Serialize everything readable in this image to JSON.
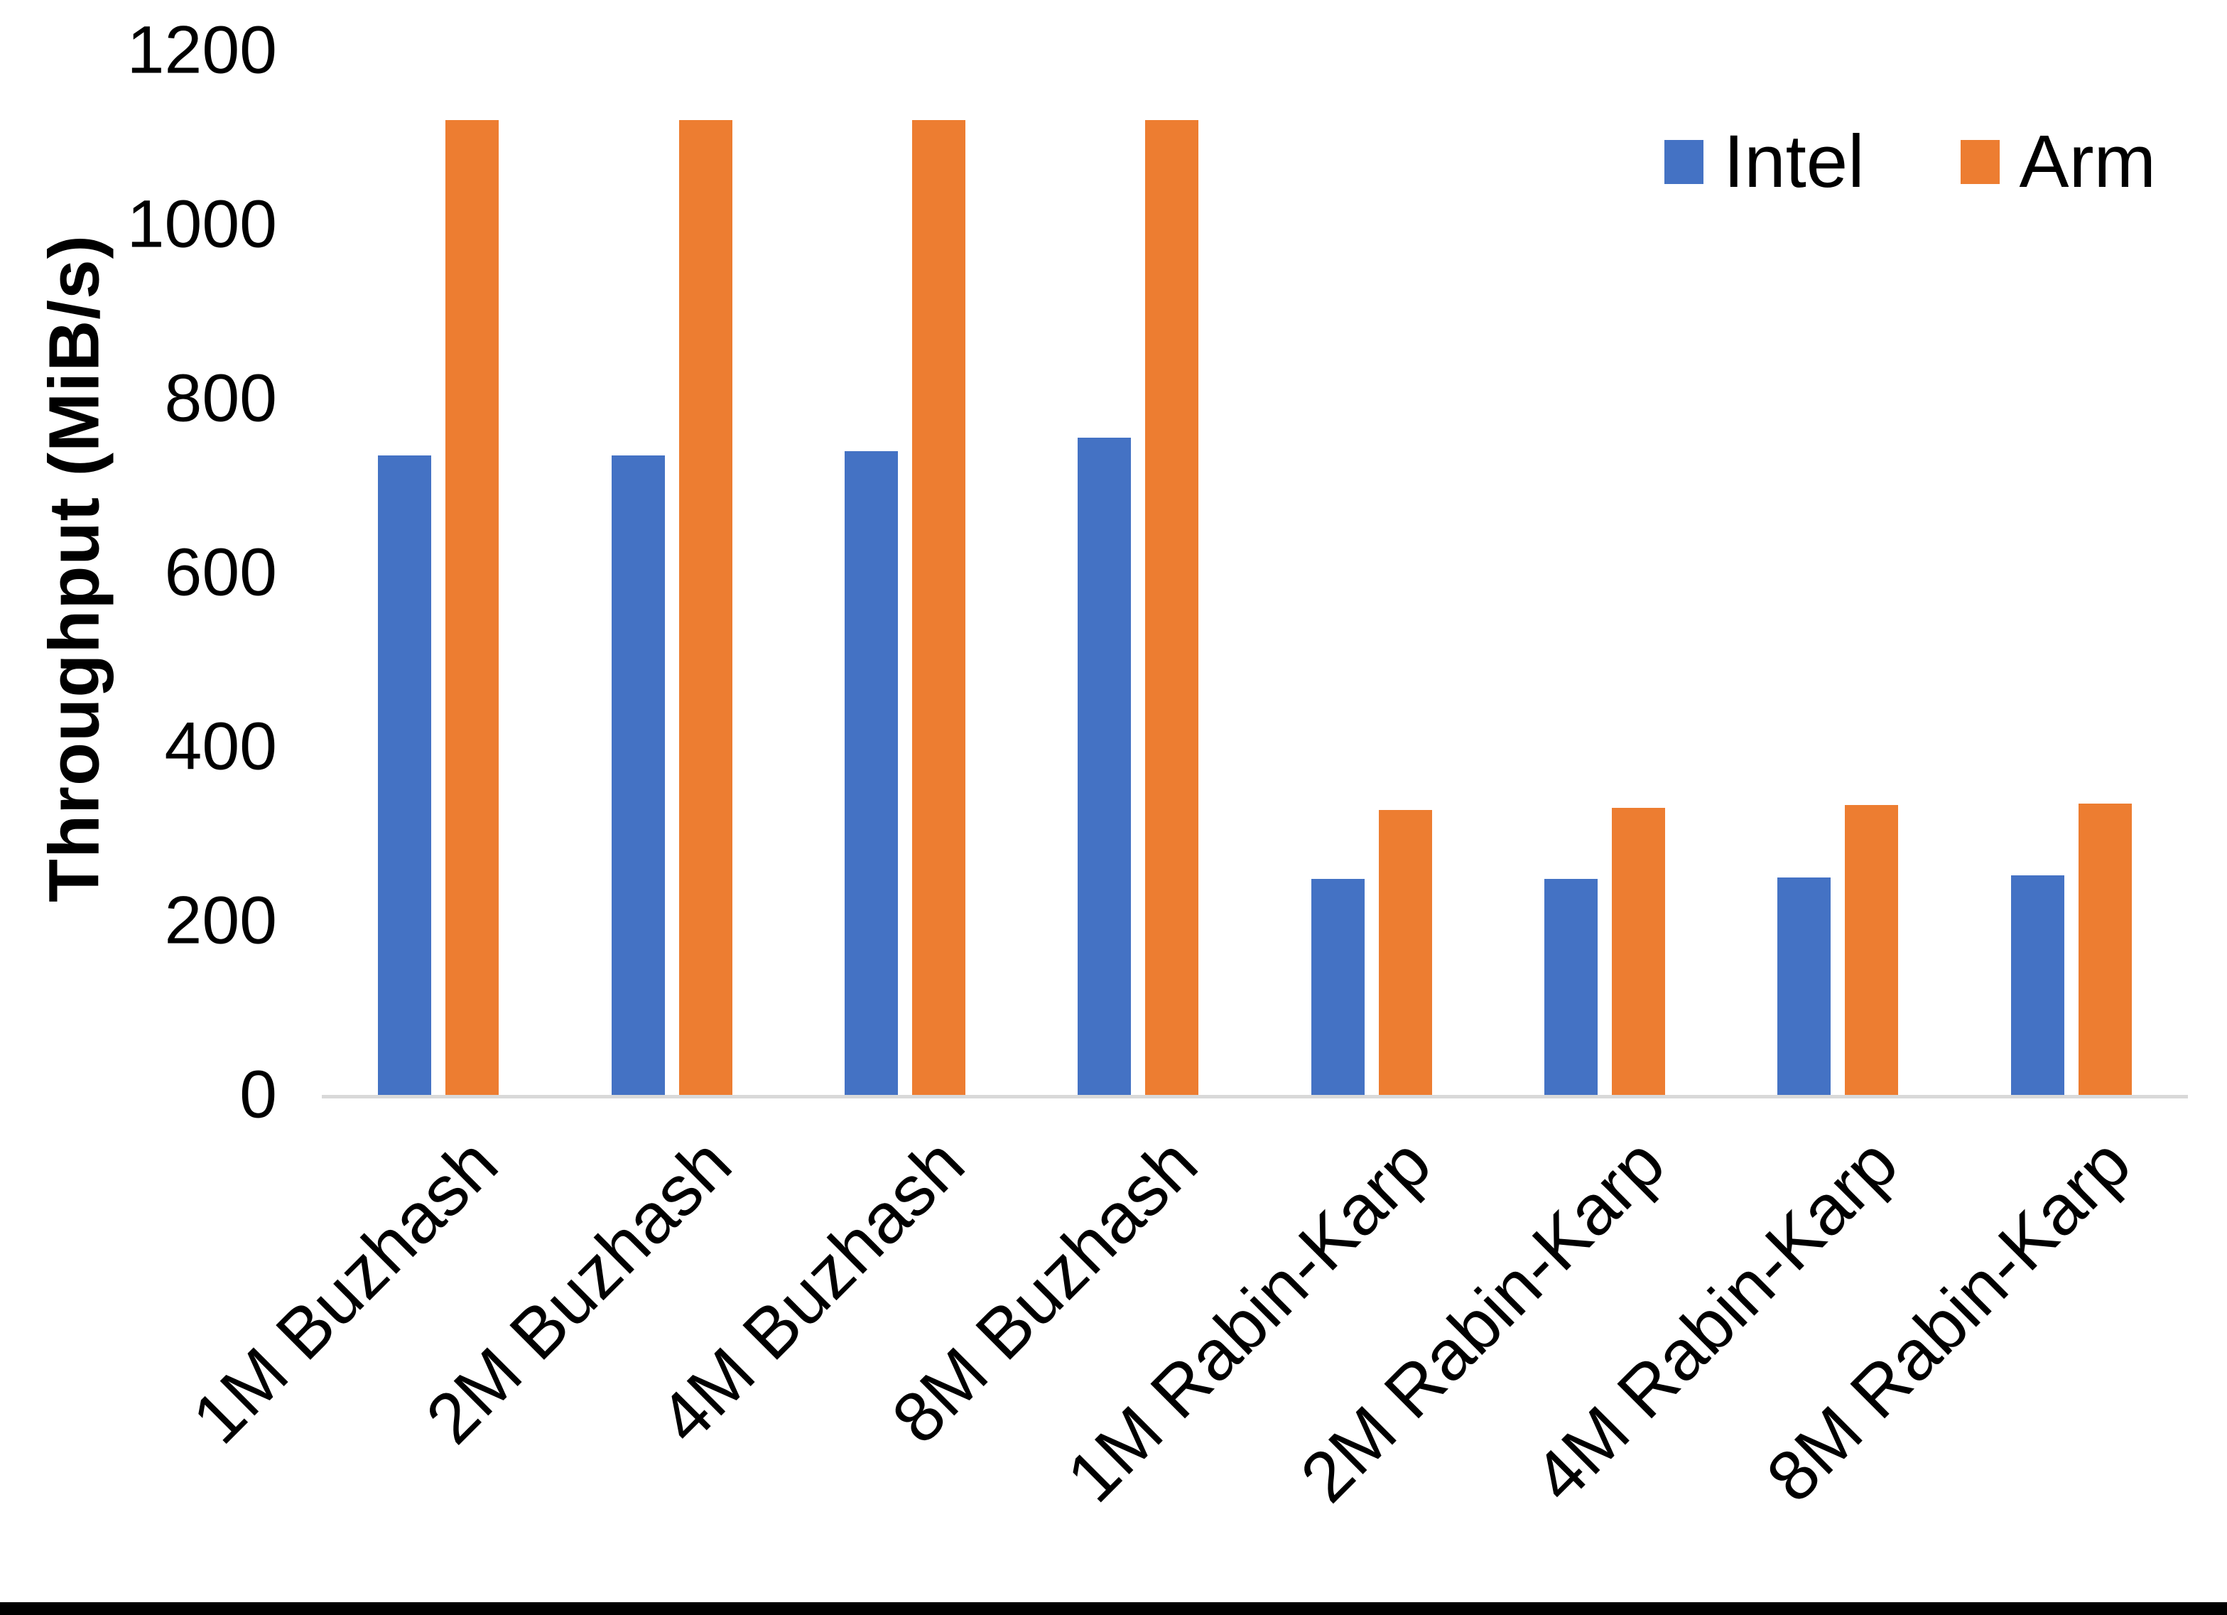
{
  "chart_data": {
    "type": "bar",
    "title": "",
    "xlabel": "",
    "ylabel": "Throughput (MiB/s)",
    "ylim": [
      0,
      1200
    ],
    "yticks": [
      0,
      200,
      400,
      600,
      800,
      1000,
      1200
    ],
    "grid": false,
    "legend_position": "top-right",
    "categories": [
      "1M Buzhash",
      "2M Buzhash",
      "4M Buzhash",
      "8M Buzhash",
      "1M Rabin-Karp",
      "2M Rabin-Karp",
      "4M Rabin-Karp",
      "8M Rabin-Karp"
    ],
    "series": [
      {
        "name": "Intel",
        "color": "#4472C4",
        "values": [
          735,
          735,
          740,
          755,
          248,
          248,
          250,
          252
        ]
      },
      {
        "name": "Arm",
        "color": "#ED7D31",
        "values": [
          1120,
          1120,
          1120,
          1120,
          327,
          330,
          333,
          335
        ]
      }
    ]
  },
  "colors": {
    "intel": "#4472C4",
    "arm": "#ED7D31",
    "axis_line": "#D9D9D9",
    "text": "#000000",
    "background": "#FFFFFF",
    "bottom_border": "#000000"
  }
}
